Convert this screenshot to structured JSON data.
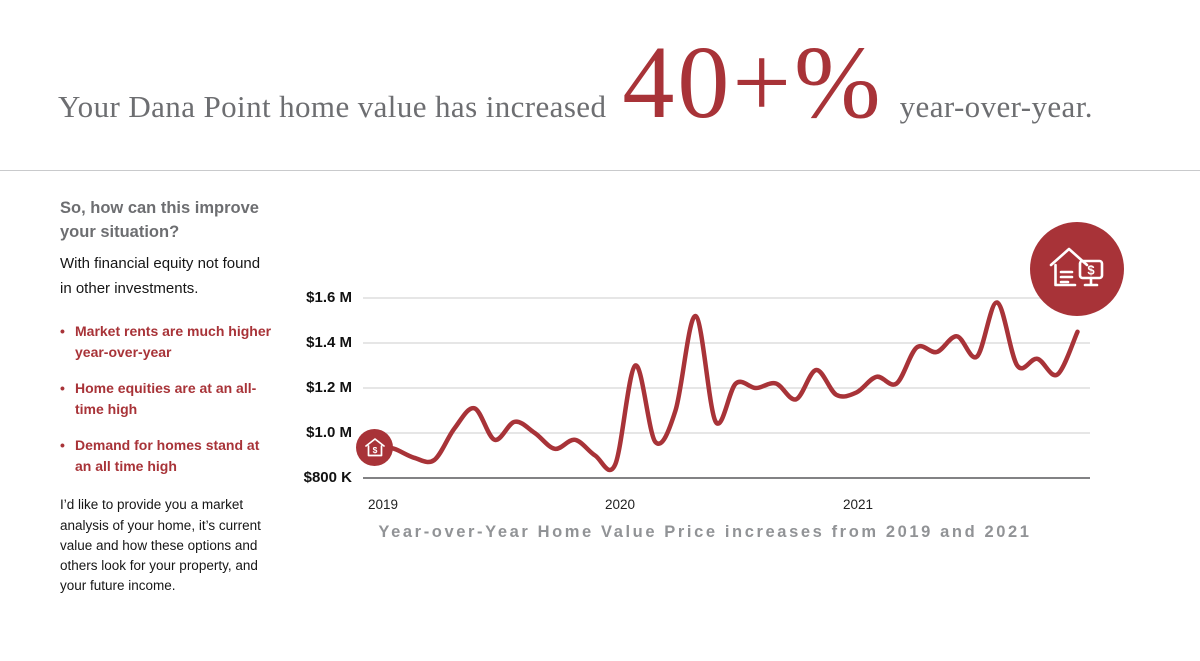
{
  "header": {
    "prefix": "Your Dana Point home value has increased",
    "highlight": "40+%",
    "suffix": "year-over-year."
  },
  "sidebar": {
    "heading": "So, how can this improve your situation?",
    "subheading": "With financial equity not found in other investments.",
    "bullets": [
      "Market rents are much higher year-over-year",
      "Home equities are at an all-time high",
      "Demand for homes stand at an all time high"
    ],
    "paragraph": "I’d like to provide you a market analysis of your home, it’s current value and how these options and others look for your property, and your future income."
  },
  "colors": {
    "accent_red": "#a83338",
    "heading_gray": "#6d6e71",
    "caption_gray": "#919396",
    "gridline_gray": "#cccccc"
  },
  "icons": {
    "start_marker": "house-with-dollar-icon",
    "end_marker": "house-and-monitor-dollar-icon",
    "dollar_glyph": "$"
  },
  "chart_data": {
    "type": "line",
    "title": "Year-over-Year Home Value Price increases from 2019 and 2021",
    "xlabel": "",
    "ylabel": "",
    "x_ticks": [
      "2019",
      "2020",
      "2021"
    ],
    "y_ticks": [
      "$1.6 M",
      "$1.4 M",
      "$1.2 M",
      "$1.0 M",
      "$800 K"
    ],
    "y_tick_values": [
      1600000,
      1400000,
      1200000,
      1000000,
      800000
    ],
    "ylim": [
      800000,
      1650000
    ],
    "grid": "horizontal",
    "legend": "none",
    "series": [
      {
        "name": "Dana Point home value",
        "color": "#a83338",
        "unit": "USD",
        "cadence": "monthly, Jan 2019 – Dec 2021",
        "values": [
          950000,
          930000,
          890000,
          880000,
          1020000,
          1110000,
          970000,
          1050000,
          1000000,
          930000,
          970000,
          900000,
          860000,
          1300000,
          960000,
          1100000,
          1520000,
          1050000,
          1220000,
          1200000,
          1220000,
          1150000,
          1280000,
          1170000,
          1180000,
          1250000,
          1220000,
          1380000,
          1360000,
          1430000,
          1340000,
          1580000,
          1300000,
          1330000,
          1260000,
          1450000
        ]
      }
    ]
  }
}
